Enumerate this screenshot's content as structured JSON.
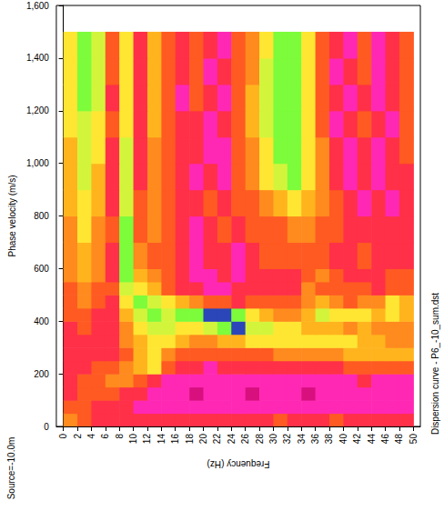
{
  "chart_data": {
    "type": "heatmap",
    "x_label": "Frequency (Hz)",
    "y_label": "Phase velocity (m/s)",
    "annotations": [
      "Source=-10.0m",
      "Dispersion curve - P6_-10_sum.dst"
    ],
    "xlim": [
      -1,
      51
    ],
    "ylim": [
      0,
      1600
    ],
    "xticks": [
      0,
      2,
      4,
      6,
      8,
      10,
      12,
      14,
      16,
      18,
      20,
      22,
      24,
      26,
      28,
      30,
      32,
      34,
      36,
      38,
      40,
      42,
      44,
      46,
      48,
      50
    ],
    "yticks": [
      0,
      200,
      400,
      600,
      800,
      1000,
      1200,
      1400,
      1600
    ],
    "grid": false,
    "zlim": [
      0,
      9
    ],
    "x_bins": [
      0,
      2,
      4,
      6,
      8,
      10,
      12,
      14,
      16,
      18,
      20,
      22,
      24,
      26,
      28,
      30,
      32,
      34,
      36,
      38,
      40,
      42,
      44,
      46,
      48,
      50
    ],
    "y_bins": [
      0,
      50,
      100,
      150,
      200,
      250,
      300,
      350,
      400,
      450,
      500,
      550,
      600,
      700,
      800,
      900,
      1000,
      1100,
      1200,
      1300,
      1400,
      1500
    ],
    "z": [
      [
        4,
        3,
        2,
        2,
        2,
        2,
        2,
        2,
        2,
        2,
        2,
        2,
        2,
        2,
        2,
        3,
        2,
        2,
        2,
        3,
        2,
        2,
        2,
        2,
        2
      ],
      [
        3,
        3,
        2,
        2,
        2,
        1,
        1,
        1,
        1,
        1,
        1,
        1,
        1,
        1,
        1,
        1,
        1,
        1,
        1,
        1,
        1,
        1,
        1,
        1,
        1
      ],
      [
        2,
        3,
        3,
        3,
        2,
        2,
        1,
        1,
        1,
        0,
        1,
        1,
        1,
        0,
        1,
        1,
        1,
        0,
        1,
        1,
        1,
        1,
        1,
        1,
        1
      ],
      [
        2,
        3,
        3,
        4,
        4,
        3,
        2,
        1,
        1,
        1,
        1,
        1,
        1,
        1,
        1,
        1,
        1,
        1,
        1,
        1,
        1,
        2,
        1,
        1,
        1
      ],
      [
        2,
        2,
        3,
        3,
        4,
        5,
        6,
        3,
        2,
        2,
        1,
        2,
        2,
        2,
        2,
        2,
        2,
        2,
        2,
        2,
        3,
        3,
        3,
        3,
        3
      ],
      [
        2,
        2,
        2,
        2,
        3,
        5,
        6,
        4,
        3,
        3,
        3,
        3,
        3,
        3,
        3,
        4,
        4,
        4,
        4,
        4,
        5,
        5,
        5,
        5,
        5
      ],
      [
        2,
        2,
        2,
        2,
        4,
        5,
        6,
        6,
        5,
        4,
        4,
        5,
        5,
        6,
        6,
        6,
        6,
        6,
        6,
        6,
        6,
        5,
        5,
        4,
        4
      ],
      [
        2,
        3,
        2,
        2,
        4,
        6,
        7,
        7,
        6,
        6,
        7,
        8,
        9,
        7,
        7,
        6,
        6,
        5,
        5,
        5,
        4,
        5,
        4,
        4,
        4
      ],
      [
        3,
        3,
        2,
        2,
        5,
        7,
        8,
        7,
        8,
        8,
        9,
        9,
        8,
        6,
        5,
        4,
        4,
        5,
        7,
        6,
        6,
        6,
        5,
        6,
        5
      ],
      [
        3,
        4,
        3,
        2,
        6,
        8,
        7,
        6,
        5,
        4,
        3,
        3,
        2,
        3,
        3,
        3,
        3,
        4,
        5,
        4,
        3,
        4,
        4,
        6,
        5
      ],
      [
        3,
        4,
        3,
        3,
        7,
        6,
        5,
        3,
        2,
        2,
        1,
        1,
        2,
        2,
        2,
        2,
        2,
        4,
        3,
        3,
        3,
        3,
        2,
        3,
        3
      ],
      [
        4,
        5,
        4,
        2,
        8,
        5,
        4,
        3,
        2,
        1,
        1,
        2,
        1,
        2,
        2,
        2,
        2,
        3,
        4,
        3,
        2,
        2,
        2,
        3,
        3
      ],
      [
        4,
        5,
        4,
        2,
        8,
        4,
        3,
        3,
        2,
        1,
        2,
        2,
        1,
        2,
        3,
        3,
        3,
        3,
        3,
        2,
        2,
        3,
        2,
        2,
        2
      ],
      [
        4,
        6,
        4,
        3,
        8,
        3,
        4,
        3,
        2,
        1,
        2,
        3,
        2,
        3,
        3,
        3,
        4,
        4,
        3,
        3,
        2,
        2,
        2,
        2,
        2
      ],
      [
        5,
        6,
        5,
        2,
        7,
        3,
        4,
        3,
        2,
        2,
        3,
        2,
        3,
        3,
        4,
        5,
        6,
        5,
        4,
        3,
        2,
        1,
        2,
        1,
        2
      ],
      [
        5,
        7,
        5,
        2,
        7,
        2,
        4,
        3,
        2,
        1,
        2,
        1,
        3,
        4,
        6,
        7,
        8,
        6,
        4,
        2,
        1,
        2,
        1,
        2,
        2
      ],
      [
        5,
        7,
        6,
        2,
        7,
        2,
        4,
        3,
        2,
        2,
        1,
        1,
        3,
        4,
        6,
        8,
        8,
        6,
        4,
        2,
        1,
        2,
        1,
        2,
        3
      ],
      [
        6,
        7,
        6,
        3,
        6,
        2,
        5,
        3,
        2,
        2,
        1,
        2,
        3,
        5,
        7,
        8,
        8,
        6,
        3,
        1,
        2,
        3,
        2,
        1,
        3
      ],
      [
        6,
        8,
        7,
        2,
        6,
        2,
        5,
        3,
        1,
        3,
        2,
        1,
        3,
        5,
        7,
        8,
        8,
        6,
        3,
        2,
        1,
        2,
        1,
        2,
        3
      ],
      [
        6,
        8,
        7,
        3,
        6,
        2,
        5,
        3,
        2,
        3,
        1,
        2,
        3,
        4,
        7,
        8,
        8,
        6,
        3,
        1,
        2,
        3,
        1,
        2,
        3
      ],
      [
        6,
        8,
        7,
        3,
        6,
        2,
        5,
        3,
        2,
        3,
        2,
        1,
        3,
        4,
        6,
        8,
        8,
        6,
        3,
        2,
        1,
        3,
        1,
        2,
        3
      ]
    ]
  }
}
